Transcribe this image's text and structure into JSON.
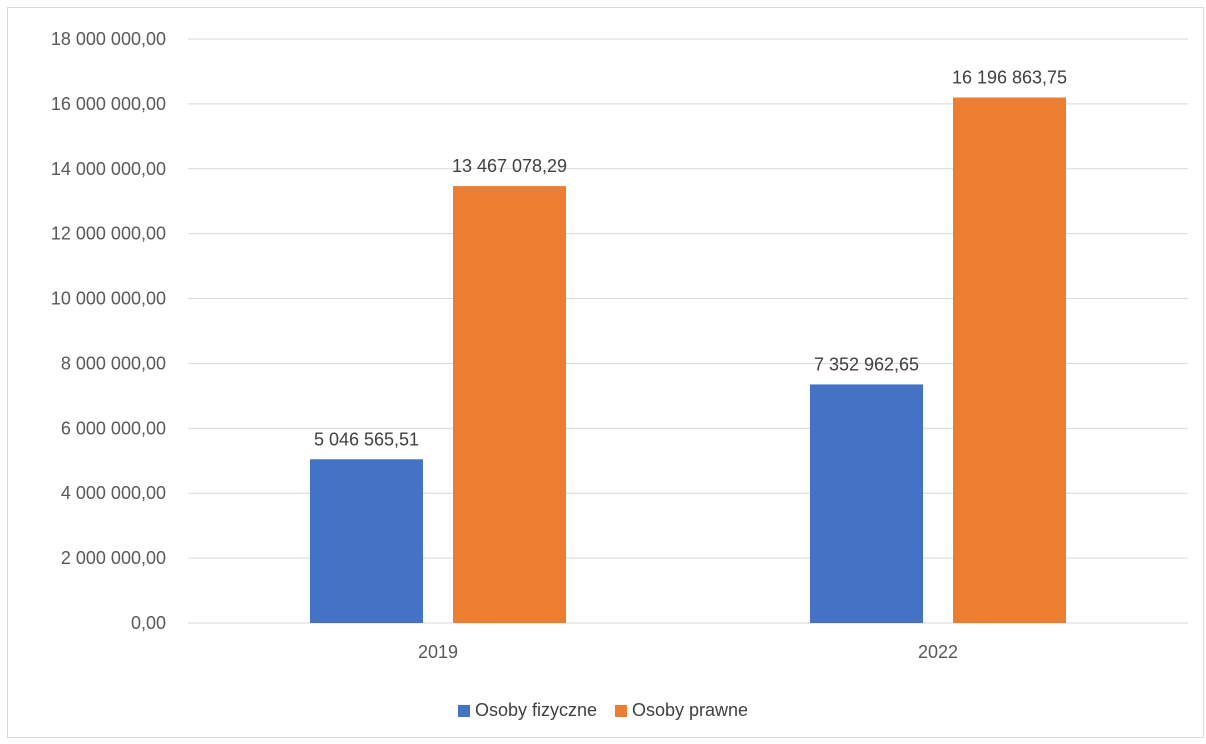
{
  "chart_data": {
    "type": "bar",
    "categories": [
      "2019",
      "2022"
    ],
    "series": [
      {
        "name": "Osoby fizyczne",
        "values": [
          5046565.51,
          7352962.65
        ],
        "labels": [
          "5 046 565,51",
          "7 352 962,65"
        ],
        "color": "#4472C4"
      },
      {
        "name": "Osoby prawne",
        "values": [
          13467078.29,
          16196863.75
        ],
        "labels": [
          "13 467 078,29",
          "16 196 863,75"
        ],
        "color": "#ED7D31"
      }
    ],
    "y_ticks": [
      "0,00",
      "2 000 000,00",
      "4 000 000,00",
      "6 000 000,00",
      "8 000 000,00",
      "10 000 000,00",
      "12 000 000,00",
      "14 000 000,00",
      "16 000 000,00",
      "18 000 000,00"
    ],
    "ylim": [
      0,
      18000000
    ],
    "y_step": 2000000,
    "grid": true,
    "legend": "bottom"
  }
}
